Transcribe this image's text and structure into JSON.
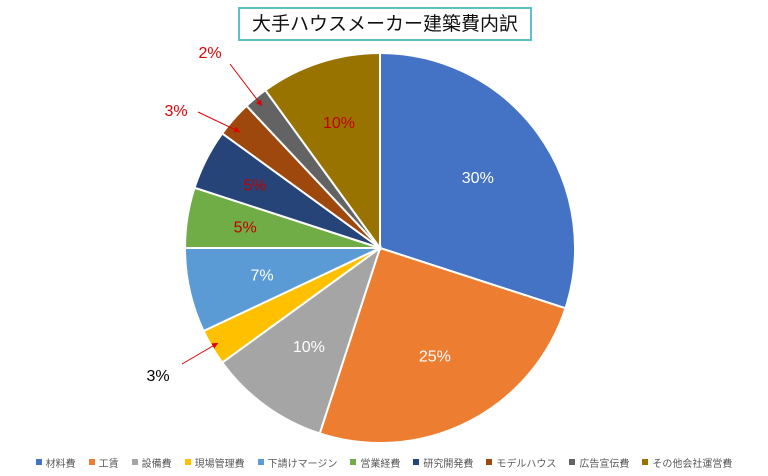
{
  "chart_data": {
    "type": "pie",
    "title": "大手ハウスメーカー建築費内訳",
    "legend_position": "bottom",
    "slices": [
      {
        "name": "材料費",
        "value": 30,
        "label": "30%",
        "color": "#4472c4",
        "label_color": "#ffffff"
      },
      {
        "name": "工賃",
        "value": 25,
        "label": "25%",
        "color": "#ed7d31",
        "label_color": "#ffffff"
      },
      {
        "name": "設備費",
        "value": 10,
        "label": "10%",
        "color": "#a5a5a5",
        "label_color": "#ffffff"
      },
      {
        "name": "現場管理費",
        "value": 3,
        "label": "3%",
        "color": "#ffc000",
        "label_color": "#000000"
      },
      {
        "name": "下請けマージン",
        "value": 7,
        "label": "7%",
        "color": "#5b9bd5",
        "label_color": "#ffffff"
      },
      {
        "name": "営業経費",
        "value": 5,
        "label": "5%",
        "color": "#70ad47",
        "label_color": "#c00000"
      },
      {
        "name": "研究開発費",
        "value": 5,
        "label": "5%",
        "color": "#264478",
        "label_color": "#c00000"
      },
      {
        "name": "モデルハウス",
        "value": 3,
        "label": "3%",
        "color": "#9e480e",
        "label_color": "#c00000"
      },
      {
        "name": "広告宣伝費",
        "value": 2,
        "label": "2%",
        "color": "#636363",
        "label_color": "#c00000"
      },
      {
        "name": "その他会社運営費",
        "value": 10,
        "label": "10%",
        "color": "#997300",
        "label_color": "#c00000"
      }
    ]
  }
}
